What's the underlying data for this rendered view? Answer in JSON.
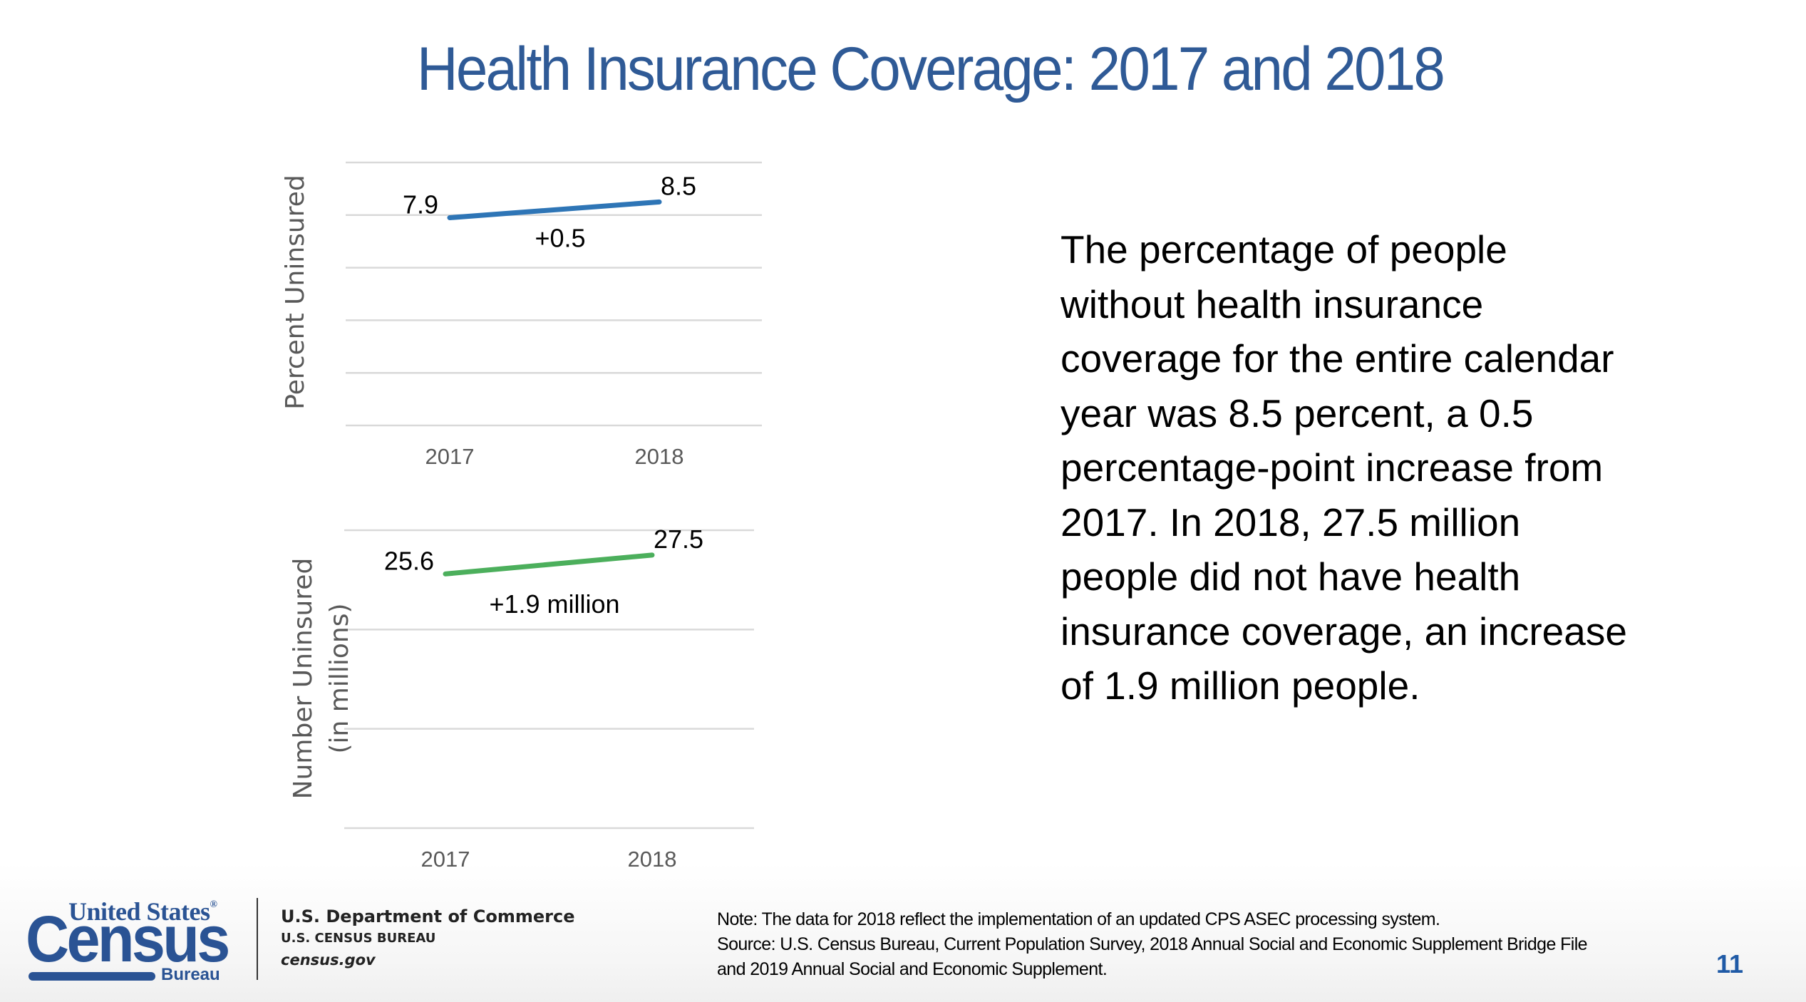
{
  "slide": {
    "title": "Health Insurance Coverage: 2017 and 2018",
    "page_number": "11",
    "body_lines": [
      "The percentage of people",
      "without health insurance",
      "coverage for the entire calendar",
      "year was 8.5 percent, a 0.5",
      "percentage-point increase from",
      "2017. In 2018, 27.5 million",
      "people did not have health",
      "insurance coverage, an increase",
      "of 1.9 million people."
    ],
    "note_lines": [
      "Note: The data for 2018 reflect the implementation of an updated CPS ASEC processing system.",
      "Source: U.S. Census Bureau, Current Population Survey, 2018 Annual Social and Economic Supplement Bridge File",
      "and 2019 Annual Social and Economic Supplement."
    ]
  },
  "footer": {
    "logo": {
      "top": "United States",
      "registered": "®",
      "main": "Census",
      "bottom": "Bureau"
    },
    "dept_line1": "U.S. Department of Commerce",
    "dept_line2": "U.S. CENSUS BUREAU",
    "dept_line3": "census.gov"
  },
  "colors": {
    "title": "#2f5a96",
    "percent_series": "#2e75b6",
    "number_series": "#4caf5c",
    "gridline": "#d9d9d9",
    "logo": "#2a5394",
    "page_number": "#1f5aa6"
  },
  "chart_data": [
    {
      "type": "line",
      "title": "",
      "ylabel": "Percent Uninsured",
      "xlabel": "",
      "categories": [
        "2017",
        "2018"
      ],
      "series": [
        {
          "name": "Percent Uninsured",
          "values": [
            7.9,
            8.5
          ]
        }
      ],
      "data_labels": [
        "7.9",
        "8.5"
      ],
      "annotation": "+0.5",
      "ylim": [
        0,
        10
      ],
      "y_step": 2,
      "y_tick_labels_shown": false,
      "grid": true,
      "legend": "none"
    },
    {
      "type": "line",
      "title": "",
      "ylabel": "Number Uninsured (in millions)",
      "ylabel_lines": [
        "Number Uninsured",
        "(in millions)"
      ],
      "xlabel": "",
      "categories": [
        "2017",
        "2018"
      ],
      "series": [
        {
          "name": "Number Uninsured (in millions)",
          "values": [
            25.6,
            27.5
          ]
        }
      ],
      "data_labels": [
        "25.6",
        "27.5"
      ],
      "annotation": "+1.9 million",
      "ylim": [
        0,
        30
      ],
      "y_step": 10,
      "y_tick_labels_shown": false,
      "grid": true,
      "legend": "none"
    }
  ]
}
